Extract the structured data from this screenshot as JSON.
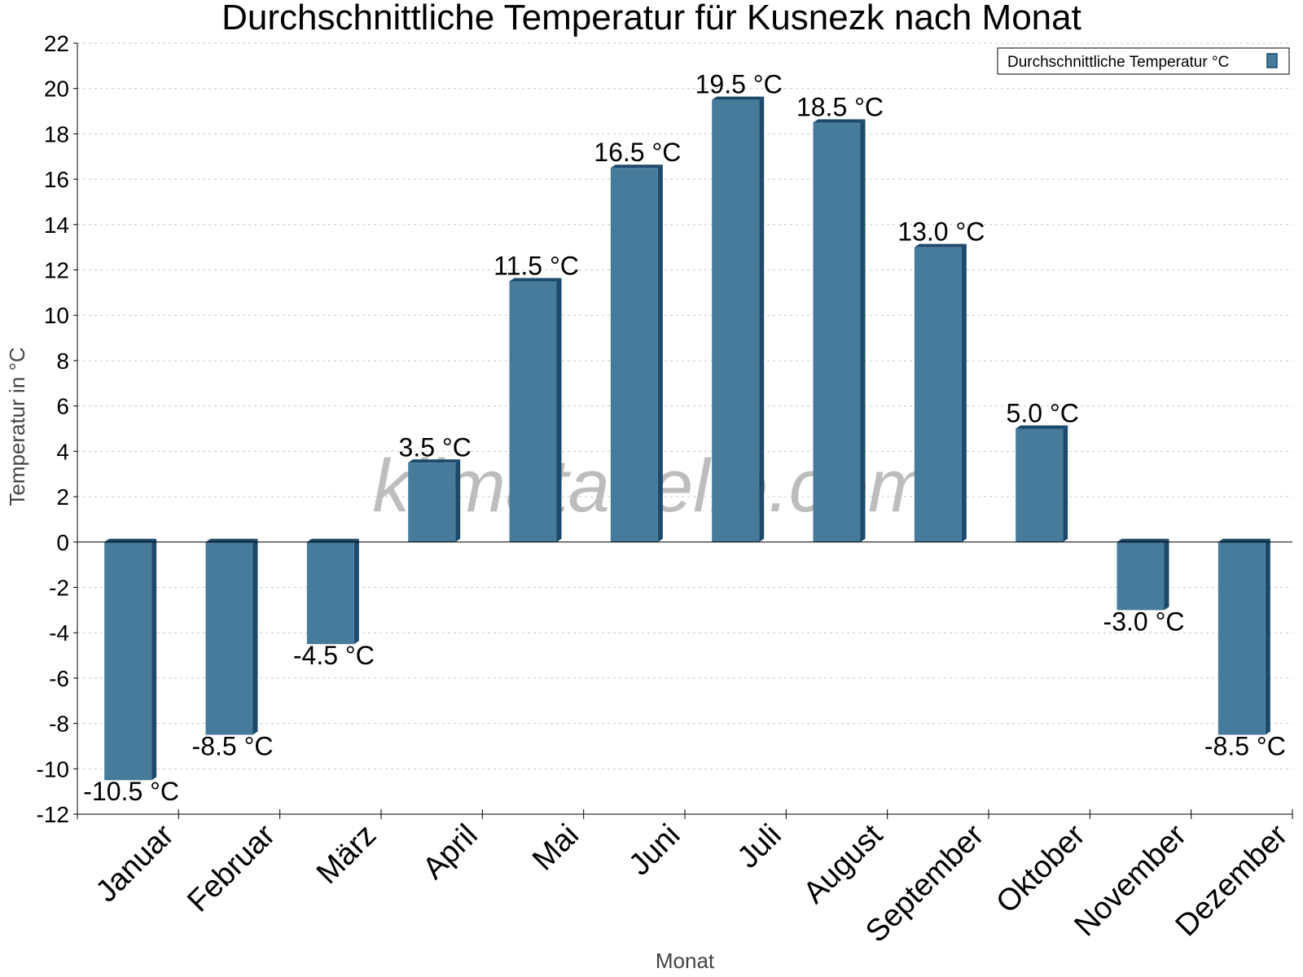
{
  "title": "Durchschnittliche Temperatur für Kusnezk nach Monat",
  "watermark": "klimatabelle.com",
  "colors": {
    "bar": "#467b9c",
    "bar_side": "#1c4a6b",
    "grid": "#c8c8c8"
  },
  "chart_data": {
    "type": "bar",
    "title": "Durchschnittliche Temperatur für Kusnezk nach Monat",
    "xlabel": "Monat",
    "ylabel": "Temperatur in °C",
    "ylim": [
      -12,
      22
    ],
    "yticks": [
      22,
      20,
      18,
      16,
      14,
      12,
      10,
      8,
      6,
      4,
      2,
      0,
      -2,
      -4,
      -6,
      -8,
      -10,
      -12
    ],
    "grid": true,
    "legend_position": "top-right",
    "categories": [
      "Januar",
      "Februar",
      "März",
      "April",
      "Mai",
      "Juni",
      "Juli",
      "August",
      "September",
      "Oktober",
      "November",
      "Dezember"
    ],
    "series": [
      {
        "name": "Durchschnittliche Temperatur °C",
        "values": [
          -10.5,
          -8.5,
          -4.5,
          3.5,
          11.5,
          16.5,
          19.5,
          18.5,
          13.0,
          5.0,
          -3.0,
          -8.5
        ],
        "labels": [
          "-10.5 °C",
          "-8.5 °C",
          "-4.5 °C",
          "3.5 °C",
          "11.5 °C",
          "16.5 °C",
          "19.5 °C",
          "18.5 °C",
          "13.0 °C",
          "5.0 °C",
          "-3.0 °C",
          "-8.5 °C"
        ]
      }
    ]
  }
}
